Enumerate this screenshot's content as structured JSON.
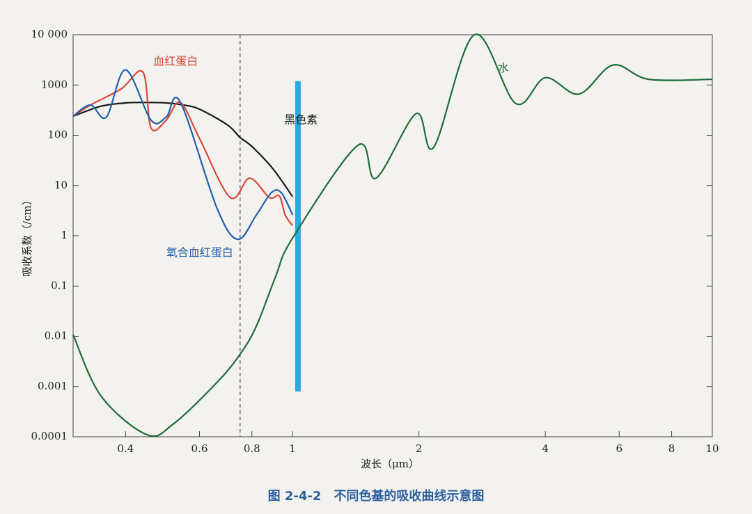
{
  "chart_data": {
    "type": "line",
    "caption": "图 2-4-2　不同色基的吸收曲线示意图",
    "xlabel": "波长（μm）",
    "ylabel": "吸收系数（/cm）",
    "xscale": "log",
    "yscale": "log",
    "xlim": [
      0.3,
      10
    ],
    "ylim": [
      0.0001,
      10000
    ],
    "xticks": [
      0.4,
      0.6,
      0.8,
      1,
      2,
      4,
      6,
      8,
      10
    ],
    "yticks": [
      0.0001,
      0.001,
      0.01,
      0.1,
      1,
      10,
      100,
      1000,
      {
        "value": 10000,
        "label": "10 000"
      }
    ],
    "series": [
      {
        "name": "黑色素",
        "color": "#1a1a1a",
        "x": [
          0.3,
          0.35,
          0.4,
          0.45,
          0.5,
          0.55,
          0.6,
          0.7,
          0.75,
          0.8,
          0.9,
          1.0
        ],
        "values": [
          240,
          380,
          440,
          450,
          440,
          400,
          330,
          160,
          90,
          60,
          21,
          6
        ]
      },
      {
        "name": "血红蛋白",
        "color": "#d9483b",
        "x": [
          0.3,
          0.33,
          0.39,
          0.44,
          0.46,
          0.5,
          0.54,
          0.6,
          0.71,
          0.79,
          0.88,
          0.93,
          0.96,
          1.0
        ],
        "values": [
          240,
          400,
          830,
          1800,
          140,
          200,
          450,
          87,
          5.8,
          14,
          5.8,
          6.2,
          2.6,
          1.6
        ]
      },
      {
        "name": "氧合血红蛋白",
        "color": "#1f5fae",
        "x": [
          0.3,
          0.33,
          0.36,
          0.4,
          0.46,
          0.5,
          0.54,
          0.66,
          0.74,
          0.82,
          0.89,
          0.94,
          1.0
        ],
        "values": [
          240,
          400,
          230,
          2000,
          200,
          230,
          460,
          3.6,
          0.85,
          2.6,
          7.2,
          7.2,
          2.6
        ]
      },
      {
        "name": "水",
        "color": "#1e6b3a",
        "x": [
          0.3,
          0.35,
          0.45,
          0.52,
          0.66,
          0.75,
          0.82,
          0.91,
          1.0,
          1.43,
          1.58,
          1.97,
          2.17,
          2.71,
          3.4,
          4,
          4.81,
          5.8,
          7.05,
          10
        ],
        "values": [
          0.0107,
          0.00064,
          0.00011,
          0.00018,
          0.0012,
          0.0044,
          0.016,
          0.15,
          0.9,
          63,
          14,
          270,
          58,
          10000,
          430,
          1400,
          660,
          2500,
          1300,
          1300
        ]
      }
    ],
    "reference_line_x": 0.75,
    "highlight_bar": {
      "x": 1.03,
      "y_range": [
        0.0008,
        1200
      ],
      "color": "#29abe2"
    }
  }
}
